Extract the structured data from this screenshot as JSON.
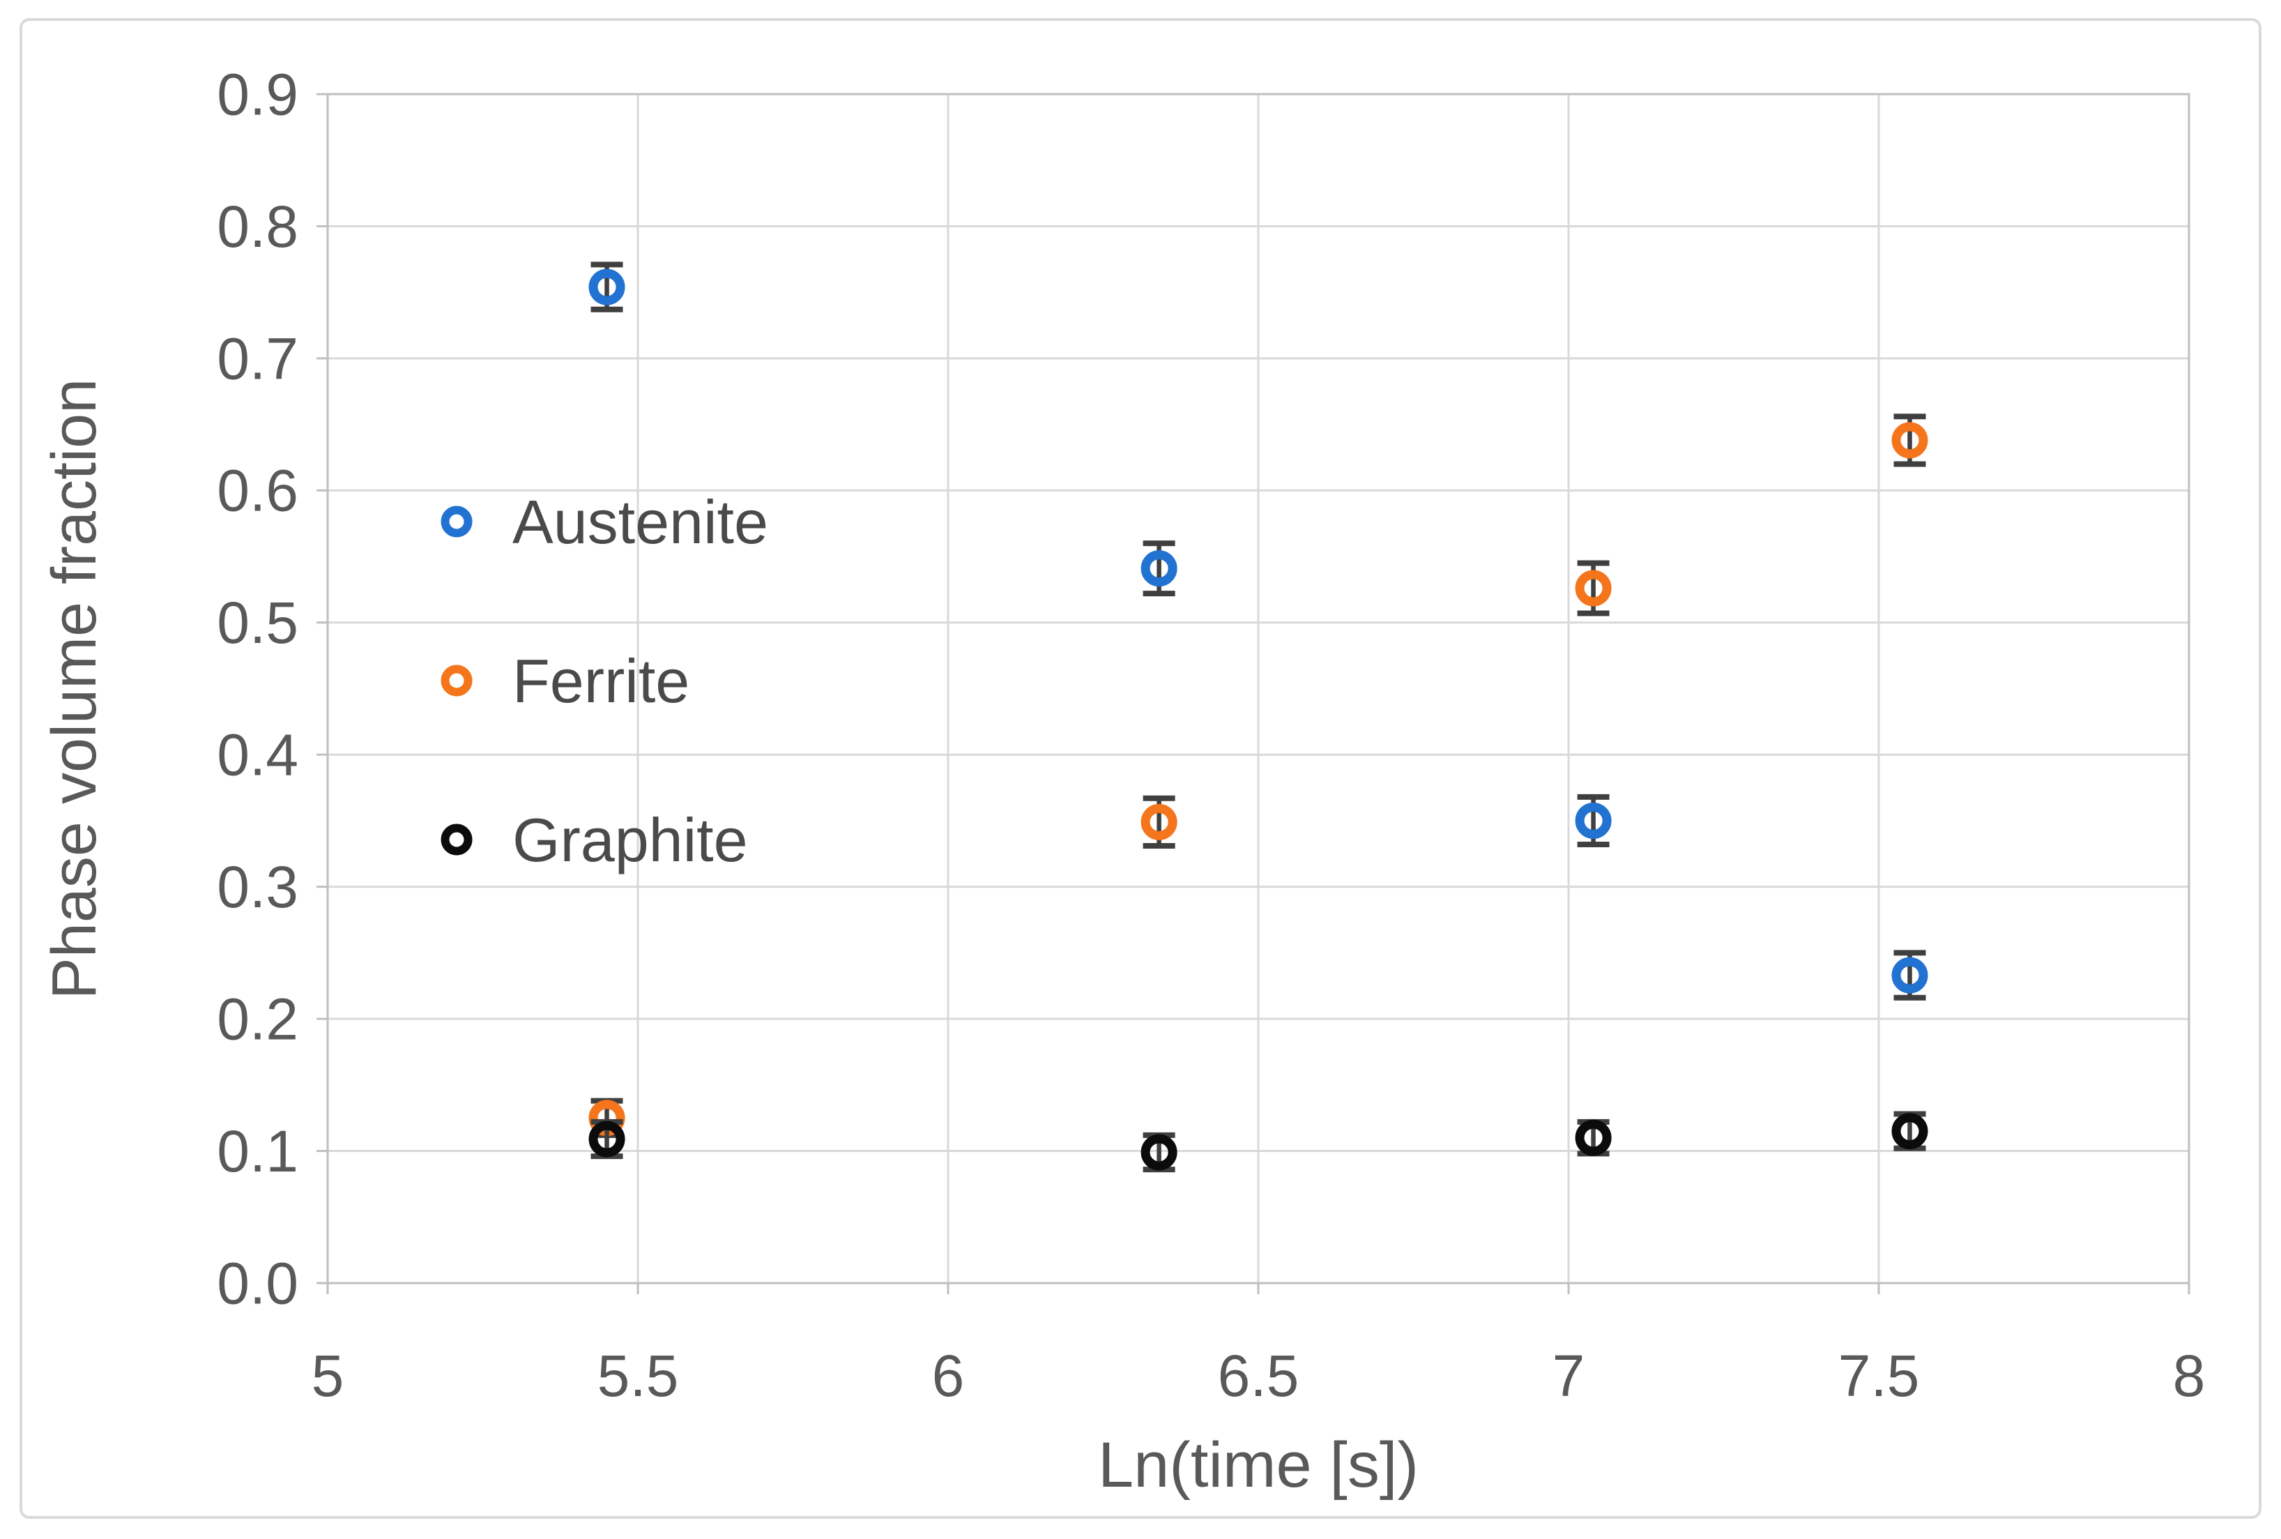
{
  "chart_data": {
    "type": "scatter",
    "title": "",
    "xlabel": "Ln(time [s])",
    "ylabel": "Phase volume fraction",
    "xlim": [
      5,
      8
    ],
    "ylim": [
      0,
      0.9
    ],
    "grid": true,
    "legend_position": "inside-left",
    "x_ticks": [
      {
        "value": 5,
        "label": "5"
      },
      {
        "value": 5.5,
        "label": "5.5"
      },
      {
        "value": 6,
        "label": "6"
      },
      {
        "value": 6.5,
        "label": "6.5"
      },
      {
        "value": 7,
        "label": "7"
      },
      {
        "value": 7.5,
        "label": "7.5"
      },
      {
        "value": 8,
        "label": "8"
      }
    ],
    "y_ticks": [
      {
        "value": 0.0,
        "label": "0.0"
      },
      {
        "value": 0.1,
        "label": "0.1"
      },
      {
        "value": 0.2,
        "label": "0.2"
      },
      {
        "value": 0.3,
        "label": "0.3"
      },
      {
        "value": 0.4,
        "label": "0.4"
      },
      {
        "value": 0.5,
        "label": "0.5"
      },
      {
        "value": 0.6,
        "label": "0.6"
      },
      {
        "value": 0.7,
        "label": "0.7"
      },
      {
        "value": 0.8,
        "label": "0.8"
      },
      {
        "value": 0.9,
        "label": "0.9"
      }
    ],
    "series": [
      {
        "name": "Austenite",
        "color": "#2272D2",
        "points": [
          {
            "x": 5.45,
            "y": 0.754,
            "err": 0.017
          },
          {
            "x": 6.34,
            "y": 0.541,
            "err": 0.019
          },
          {
            "x": 7.04,
            "y": 0.35,
            "err": 0.018
          },
          {
            "x": 7.55,
            "y": 0.233,
            "err": 0.017
          }
        ]
      },
      {
        "name": "Ferrite",
        "color": "#F4751C",
        "points": [
          {
            "x": 5.45,
            "y": 0.125,
            "err": 0.013
          },
          {
            "x": 6.34,
            "y": 0.349,
            "err": 0.018
          },
          {
            "x": 7.04,
            "y": 0.526,
            "err": 0.019
          },
          {
            "x": 7.55,
            "y": 0.638,
            "err": 0.018
          }
        ]
      },
      {
        "name": "Graphite",
        "color": "#0B0B0B",
        "points": [
          {
            "x": 5.45,
            "y": 0.109,
            "err": 0.013
          },
          {
            "x": 6.34,
            "y": 0.099,
            "err": 0.013
          },
          {
            "x": 7.04,
            "y": 0.11,
            "err": 0.012
          },
          {
            "x": 7.55,
            "y": 0.115,
            "err": 0.013
          }
        ]
      }
    ],
    "colors": {
      "error_bar": "#3F3F3F",
      "gridline": "#D9D9D9",
      "axis_line": "#BFBFBF",
      "tick_label": "#595959",
      "axis_title": "#595959",
      "legend_text": "#4A4A4A",
      "figure_border": "#D9D9D9",
      "background": "#FFFFFF"
    }
  }
}
